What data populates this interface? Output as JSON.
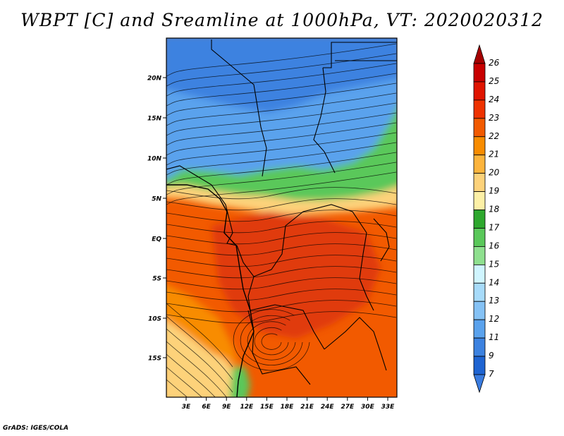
{
  "title": "WBPT [C] and Sreamline at 1000hPa, VT: 2020020312",
  "credit": "GrADS: IGES/COLA",
  "map": {
    "y_ticks": [
      "20N",
      "15N",
      "10N",
      "5N",
      "EQ",
      "5S",
      "10S",
      "15S"
    ],
    "x_ticks": [
      "3E",
      "6E",
      "9E",
      "12E",
      "15E",
      "18E",
      "21E",
      "24E",
      "27E",
      "30E",
      "33E"
    ]
  },
  "colorbar": {
    "labels": [
      "26",
      "25",
      "24",
      "23",
      "22",
      "21",
      "20",
      "19",
      "18",
      "17",
      "16",
      "15",
      "14",
      "13",
      "12",
      "11",
      "9",
      "7"
    ],
    "colors": {
      "top_arrow": "#a50000",
      "bands": [
        "#c80000",
        "#e01400",
        "#ee3200",
        "#f25a00",
        "#f88c00",
        "#fdb43c",
        "#fdd27a",
        "#fdf0a6",
        "#2ea82e",
        "#5ac85a",
        "#8fe08f",
        "#d0f5ff",
        "#a7dbfa",
        "#85c2f5",
        "#5aa2ed",
        "#3c82e0",
        "#1e64d2"
      ],
      "bottom_arrow": "#3a7ce0"
    }
  },
  "palette": {
    "warm_dark": "#e03a10",
    "warm": "#f25a00",
    "warm_light": "#f88c00",
    "pale": "#fdd27a",
    "green": "#5ac85a",
    "green_light": "#8fe08f",
    "cool_light": "#85c2f5",
    "cool": "#5aa2ed",
    "cool_dark": "#3c82e0"
  }
}
